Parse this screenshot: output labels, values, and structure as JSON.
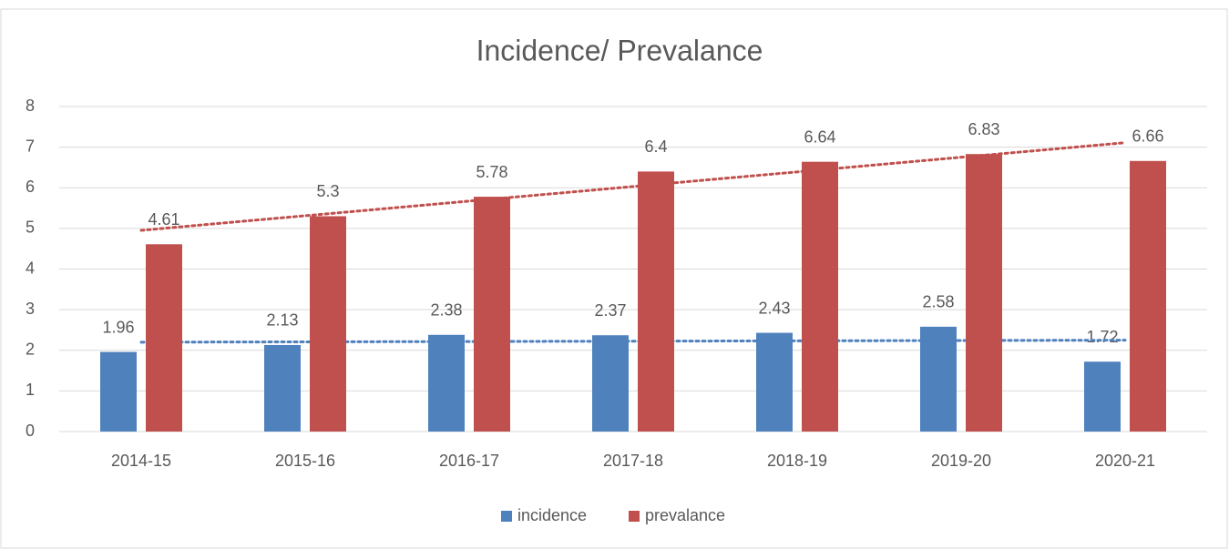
{
  "chart_data": {
    "type": "bar",
    "title": "Incidence/ Prevalance",
    "categories": [
      "2014-15",
      "2015-16",
      "2016-17",
      "2017-18",
      "2018-19",
      "2019-20",
      "2020-21"
    ],
    "series": [
      {
        "name": "incidence",
        "color": "#4f81bd",
        "values": [
          1.96,
          2.13,
          2.38,
          2.37,
          2.43,
          2.58,
          1.72
        ]
      },
      {
        "name": "prevalance",
        "color": "#c0504d",
        "values": [
          4.61,
          5.3,
          5.78,
          6.4,
          6.64,
          6.83,
          6.66
        ]
      }
    ],
    "ylim": [
      0,
      8
    ],
    "yticks": [
      0,
      1,
      2,
      3,
      4,
      5,
      6,
      7,
      8
    ],
    "grid": true,
    "data_labels": true,
    "trendlines": true,
    "legend": "bottom"
  }
}
